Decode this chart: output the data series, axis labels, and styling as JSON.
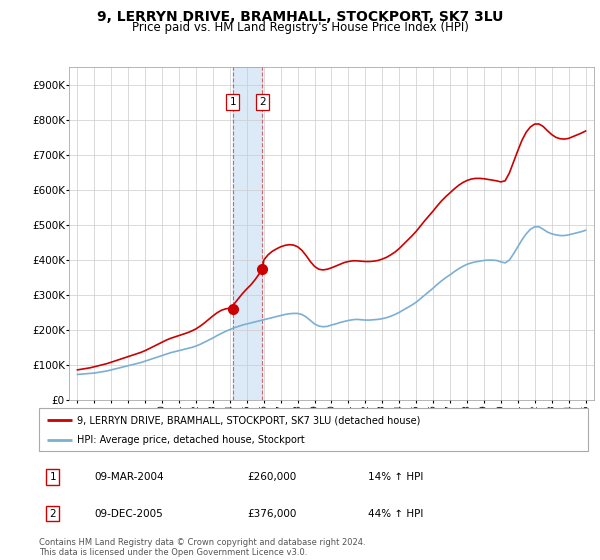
{
  "title": "9, LERRYN DRIVE, BRAMHALL, STOCKPORT, SK7 3LU",
  "subtitle": "Price paid vs. HM Land Registry's House Price Index (HPI)",
  "legend_label1": "9, LERRYN DRIVE, BRAMHALL, STOCKPORT, SK7 3LU (detached house)",
  "legend_label2": "HPI: Average price, detached house, Stockport",
  "sale1_date": "09-MAR-2004",
  "sale1_price": "£260,000",
  "sale1_hpi": "14% ↑ HPI",
  "sale2_date": "09-DEC-2005",
  "sale2_price": "£376,000",
  "sale2_hpi": "44% ↑ HPI",
  "footnote": "Contains HM Land Registry data © Crown copyright and database right 2024.\nThis data is licensed under the Open Government Licence v3.0.",
  "sale_color": "#cc0000",
  "hpi_color": "#7bafd4",
  "highlight_color": "#dce9f7",
  "sale1_year": 2004.18,
  "sale2_year": 2005.92,
  "ylim_max": 950000,
  "yticks": [
    0,
    100000,
    200000,
    300000,
    400000,
    500000,
    600000,
    700000,
    800000,
    900000
  ],
  "xlim_min": 1994.5,
  "xlim_max": 2025.5,
  "hpi_x": [
    1995.0,
    1995.25,
    1995.5,
    1995.75,
    1996.0,
    1996.25,
    1996.5,
    1996.75,
    1997.0,
    1997.25,
    1997.5,
    1997.75,
    1998.0,
    1998.25,
    1998.5,
    1998.75,
    1999.0,
    1999.25,
    1999.5,
    1999.75,
    2000.0,
    2000.25,
    2000.5,
    2000.75,
    2001.0,
    2001.25,
    2001.5,
    2001.75,
    2002.0,
    2002.25,
    2002.5,
    2002.75,
    2003.0,
    2003.25,
    2003.5,
    2003.75,
    2004.0,
    2004.25,
    2004.5,
    2004.75,
    2005.0,
    2005.25,
    2005.5,
    2005.75,
    2006.0,
    2006.25,
    2006.5,
    2006.75,
    2007.0,
    2007.25,
    2007.5,
    2007.75,
    2008.0,
    2008.25,
    2008.5,
    2008.75,
    2009.0,
    2009.25,
    2009.5,
    2009.75,
    2010.0,
    2010.25,
    2010.5,
    2010.75,
    2011.0,
    2011.25,
    2011.5,
    2011.75,
    2012.0,
    2012.25,
    2012.5,
    2012.75,
    2013.0,
    2013.25,
    2013.5,
    2013.75,
    2014.0,
    2014.25,
    2014.5,
    2014.75,
    2015.0,
    2015.25,
    2015.5,
    2015.75,
    2016.0,
    2016.25,
    2016.5,
    2016.75,
    2017.0,
    2017.25,
    2017.5,
    2017.75,
    2018.0,
    2018.25,
    2018.5,
    2018.75,
    2019.0,
    2019.25,
    2019.5,
    2019.75,
    2020.0,
    2020.25,
    2020.5,
    2020.75,
    2021.0,
    2021.25,
    2021.5,
    2021.75,
    2022.0,
    2022.25,
    2022.5,
    2022.75,
    2023.0,
    2023.25,
    2023.5,
    2023.75,
    2024.0,
    2024.25,
    2024.5,
    2024.75,
    2025.0
  ],
  "hpi_y": [
    74000,
    75000,
    76000,
    77000,
    78000,
    80000,
    82000,
    84000,
    87000,
    90000,
    93000,
    96000,
    99000,
    102000,
    105000,
    108000,
    112000,
    116000,
    120000,
    124000,
    128000,
    132000,
    136000,
    139000,
    142000,
    145000,
    148000,
    151000,
    155000,
    160000,
    166000,
    172000,
    178000,
    185000,
    191000,
    197000,
    202000,
    207000,
    211000,
    215000,
    218000,
    221000,
    224000,
    227000,
    230000,
    233000,
    236000,
    239000,
    242000,
    245000,
    247000,
    248000,
    248000,
    245000,
    238000,
    228000,
    218000,
    212000,
    210000,
    211000,
    215000,
    218000,
    222000,
    225000,
    228000,
    230000,
    231000,
    230000,
    229000,
    229000,
    230000,
    231000,
    233000,
    236000,
    240000,
    245000,
    251000,
    258000,
    265000,
    272000,
    280000,
    290000,
    300000,
    310000,
    320000,
    331000,
    341000,
    350000,
    358000,
    367000,
    375000,
    382000,
    388000,
    392000,
    395000,
    397000,
    399000,
    400000,
    400000,
    399000,
    395000,
    392000,
    400000,
    418000,
    438000,
    458000,
    475000,
    488000,
    495000,
    495000,
    488000,
    480000,
    475000,
    472000,
    470000,
    470000,
    472000,
    475000,
    478000,
    481000,
    485000
  ],
  "prop_x": [
    1995.0,
    1995.25,
    1995.5,
    1995.75,
    1996.0,
    1996.25,
    1996.5,
    1996.75,
    1997.0,
    1997.25,
    1997.5,
    1997.75,
    1998.0,
    1998.25,
    1998.5,
    1998.75,
    1999.0,
    1999.25,
    1999.5,
    1999.75,
    2000.0,
    2000.25,
    2000.5,
    2000.75,
    2001.0,
    2001.25,
    2001.5,
    2001.75,
    2002.0,
    2002.25,
    2002.5,
    2002.75,
    2003.0,
    2003.25,
    2003.5,
    2003.75,
    2004.0,
    2004.18,
    2004.25,
    2004.5,
    2004.75,
    2005.0,
    2005.25,
    2005.5,
    2005.75,
    2005.92,
    2006.0,
    2006.25,
    2006.5,
    2006.75,
    2007.0,
    2007.25,
    2007.5,
    2007.75,
    2008.0,
    2008.25,
    2008.5,
    2008.75,
    2009.0,
    2009.25,
    2009.5,
    2009.75,
    2010.0,
    2010.25,
    2010.5,
    2010.75,
    2011.0,
    2011.25,
    2011.5,
    2011.75,
    2012.0,
    2012.25,
    2012.5,
    2012.75,
    2013.0,
    2013.25,
    2013.5,
    2013.75,
    2014.0,
    2014.25,
    2014.5,
    2014.75,
    2015.0,
    2015.25,
    2015.5,
    2015.75,
    2016.0,
    2016.25,
    2016.5,
    2016.75,
    2017.0,
    2017.25,
    2017.5,
    2017.75,
    2018.0,
    2018.25,
    2018.5,
    2018.75,
    2019.0,
    2019.25,
    2019.5,
    2019.75,
    2020.0,
    2020.25,
    2020.5,
    2020.75,
    2021.0,
    2021.25,
    2021.5,
    2021.75,
    2022.0,
    2022.25,
    2022.5,
    2022.75,
    2023.0,
    2023.25,
    2023.5,
    2023.75,
    2024.0,
    2024.25,
    2024.5,
    2024.75,
    2025.0
  ],
  "prop_y": [
    87000,
    89000,
    91000,
    93000,
    96000,
    99000,
    102000,
    105000,
    109000,
    113000,
    117000,
    121000,
    125000,
    129000,
    133000,
    137000,
    142000,
    148000,
    154000,
    160000,
    166000,
    172000,
    177000,
    181000,
    185000,
    189000,
    193000,
    198000,
    204000,
    212000,
    221000,
    231000,
    241000,
    250000,
    257000,
    261000,
    263000,
    260000,
    275000,
    290000,
    305000,
    318000,
    330000,
    345000,
    362000,
    376000,
    400000,
    415000,
    425000,
    432000,
    438000,
    442000,
    444000,
    443000,
    438000,
    428000,
    413000,
    396000,
    382000,
    374000,
    372000,
    374000,
    378000,
    383000,
    388000,
    393000,
    396000,
    398000,
    398000,
    397000,
    396000,
    396000,
    397000,
    399000,
    403000,
    408000,
    415000,
    423000,
    433000,
    445000,
    457000,
    469000,
    482000,
    497000,
    512000,
    526000,
    540000,
    555000,
    569000,
    581000,
    592000,
    603000,
    613000,
    621000,
    627000,
    631000,
    633000,
    633000,
    632000,
    630000,
    628000,
    626000,
    623000,
    626000,
    648000,
    680000,
    712000,
    742000,
    765000,
    780000,
    788000,
    788000,
    781000,
    769000,
    758000,
    750000,
    746000,
    745000,
    747000,
    752000,
    757000,
    762000,
    768000
  ]
}
